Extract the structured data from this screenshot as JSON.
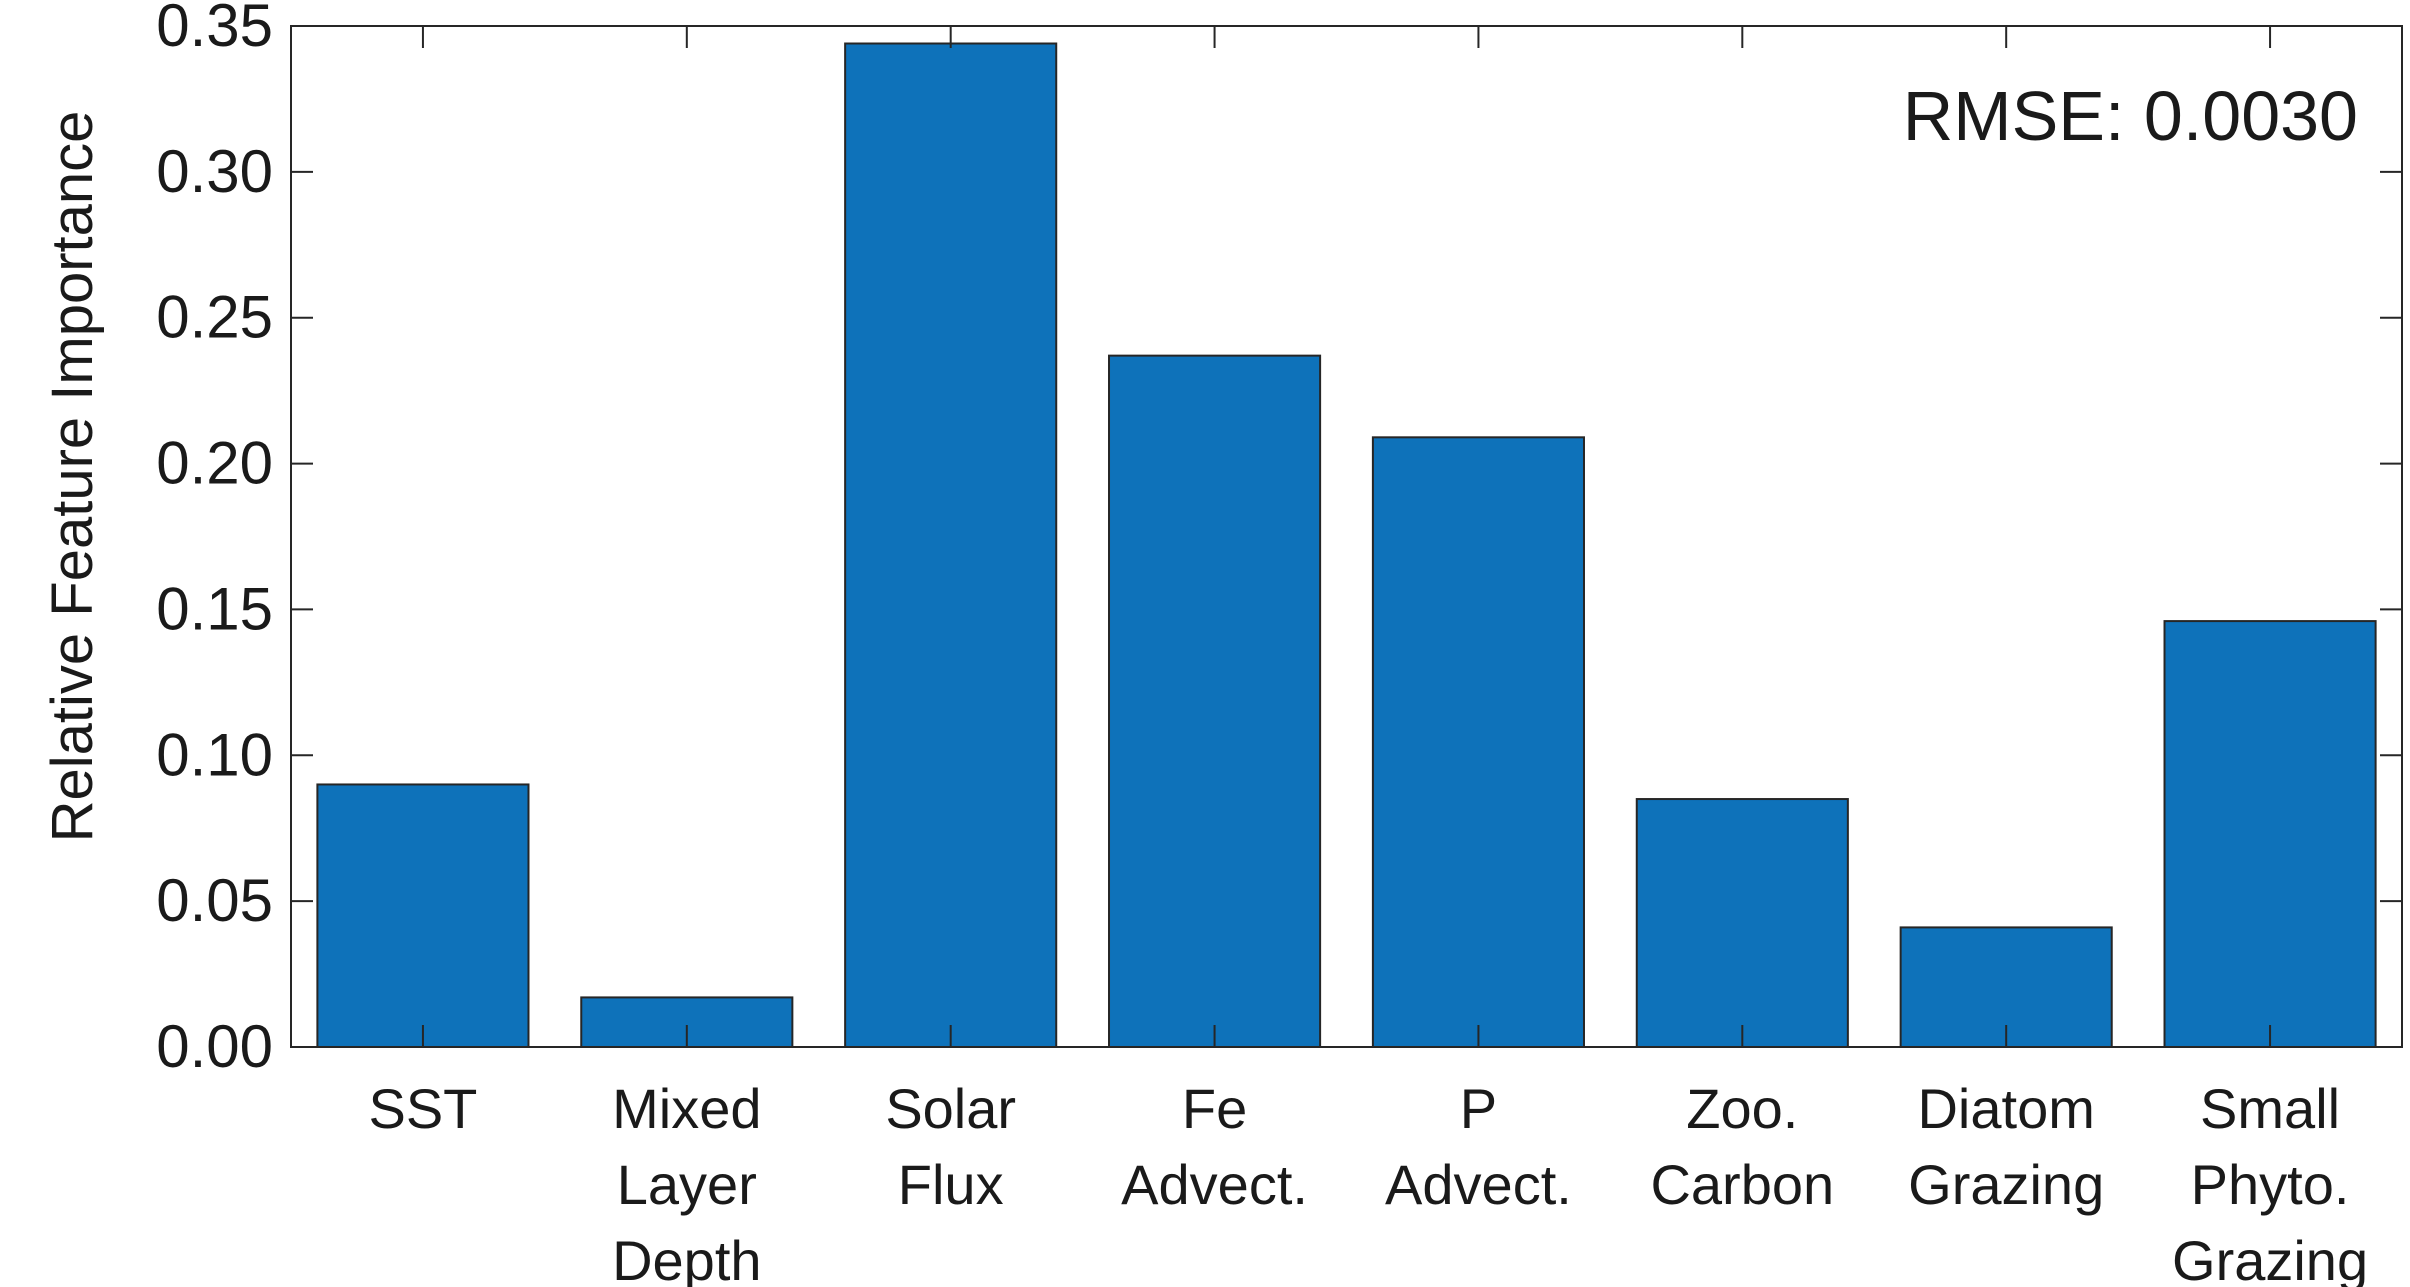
{
  "chart_data": {
    "type": "bar",
    "title": "",
    "xlabel": "",
    "ylabel": "Relative Feature Importance",
    "ylim": [
      0,
      0.35
    ],
    "yticks": [
      "0.00",
      "0.05",
      "0.10",
      "0.15",
      "0.20",
      "0.25",
      "0.30",
      "0.35"
    ],
    "categories": [
      [
        "SST"
      ],
      [
        "Mixed",
        "Layer",
        "Depth"
      ],
      [
        "Solar",
        "Flux"
      ],
      [
        "Fe",
        "Advect."
      ],
      [
        "P",
        "Advect."
      ],
      [
        "Zoo.",
        "Carbon"
      ],
      [
        "Diatom",
        "Grazing"
      ],
      [
        "Small",
        "Phyto.",
        "Grazing"
      ]
    ],
    "values": [
      0.09,
      0.017,
      0.344,
      0.237,
      0.209,
      0.085,
      0.041,
      0.146
    ],
    "annotation": "RMSE: 0.0030",
    "bar_color": "#0e72ba",
    "bar_edge_color": "#262626",
    "grid": false
  }
}
